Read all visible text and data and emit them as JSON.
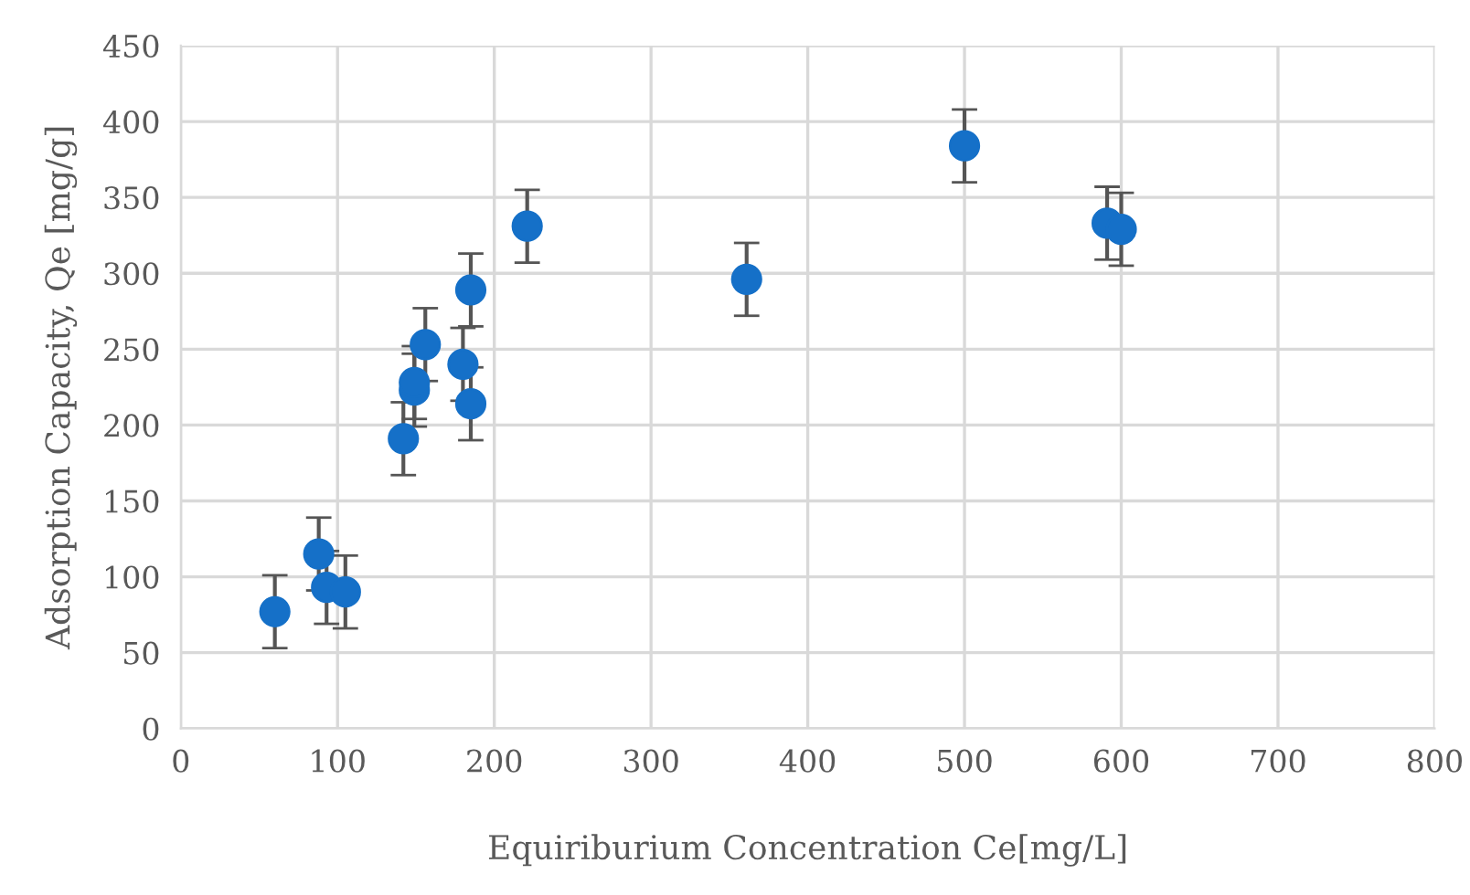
{
  "chart_data": {
    "type": "scatter",
    "xlabel": "Equiriburium Concentration Ce[mg/L]",
    "ylabel": "Adsorption Capacity, Qe [mg/g]",
    "xlim": [
      0,
      800
    ],
    "xticks": [
      0,
      100,
      200,
      300,
      400,
      500,
      600,
      700,
      800
    ],
    "ylim": [
      0,
      450
    ],
    "yticks": [
      0,
      50,
      100,
      150,
      200,
      250,
      300,
      350,
      400,
      450
    ],
    "grid": true,
    "marker": "circle",
    "series": [
      {
        "color": "#1570c8",
        "x": [
          60,
          88,
          93,
          105,
          142,
          149,
          149,
          156,
          180,
          185,
          185,
          221,
          361,
          500,
          591,
          600
        ],
        "values": [
          77,
          115,
          93,
          90,
          191,
          223,
          228,
          253,
          240,
          214,
          289,
          331,
          296,
          384,
          333,
          329
        ],
        "errors": [
          24,
          24,
          24,
          24,
          24,
          24,
          24,
          24,
          24,
          24,
          24,
          24,
          24,
          24,
          24,
          24
        ]
      }
    ]
  }
}
